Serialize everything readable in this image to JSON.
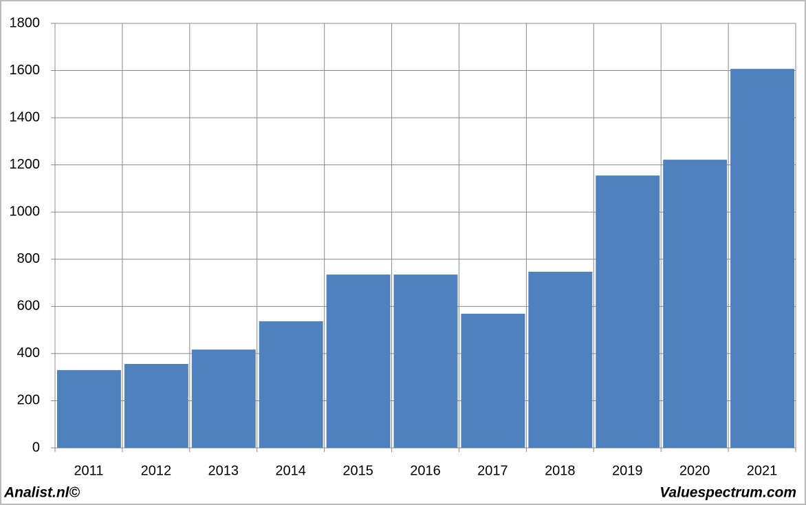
{
  "chart_data": {
    "type": "bar",
    "categories": [
      "2011",
      "2012",
      "2013",
      "2014",
      "2015",
      "2016",
      "2017",
      "2018",
      "2019",
      "2020",
      "2021"
    ],
    "values": [
      330,
      356,
      417,
      537,
      735,
      735,
      569,
      747,
      1155,
      1222,
      1607
    ],
    "color": "#4f81bd",
    "ylim": [
      0,
      1800
    ],
    "yticks": [
      0,
      200,
      400,
      600,
      800,
      1000,
      1200,
      1400,
      1600,
      1800
    ],
    "grid": true
  },
  "footer": {
    "left": "Analist.nl©",
    "right": "Valuespectrum.com"
  }
}
